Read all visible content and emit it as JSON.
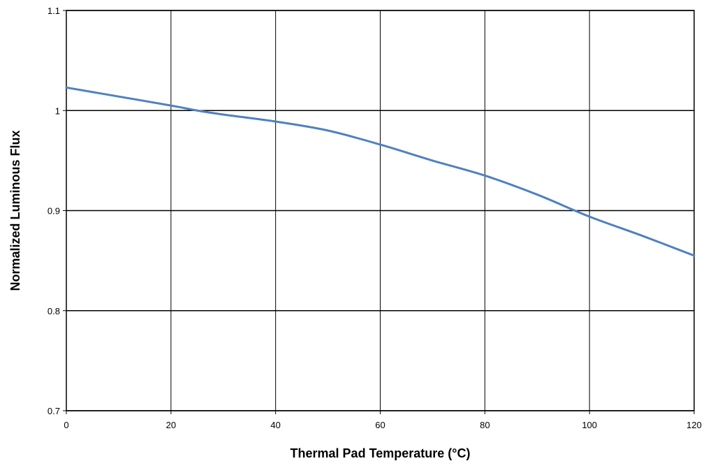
{
  "chart_data": {
    "type": "line",
    "title": "",
    "xlabel": "Thermal Pad Temperature (°C)",
    "ylabel": "Normalized Luminous Flux",
    "xlim": [
      0,
      120
    ],
    "ylim": [
      0.7,
      1.1
    ],
    "x_ticks": [
      0,
      20,
      40,
      60,
      80,
      100,
      120
    ],
    "x_tick_labels": [
      "0",
      "20",
      "40",
      "60",
      "80",
      "100",
      "120"
    ],
    "y_ticks": [
      0.7,
      0.8,
      0.9,
      1.0,
      1.1
    ],
    "y_tick_labels": [
      "0.7",
      "0.8",
      "0.9",
      "1",
      "1.1"
    ],
    "grid": true,
    "legend": "none",
    "series": [
      {
        "color": "#4f81bd",
        "x": [
          0,
          10,
          20,
          25,
          30,
          40,
          50,
          60,
          70,
          80,
          90,
          100,
          110,
          120
        ],
        "y": [
          1.023,
          1.014,
          1.005,
          1.0,
          0.996,
          0.989,
          0.98,
          0.966,
          0.95,
          0.935,
          0.916,
          0.894,
          0.875,
          0.855
        ]
      }
    ]
  }
}
